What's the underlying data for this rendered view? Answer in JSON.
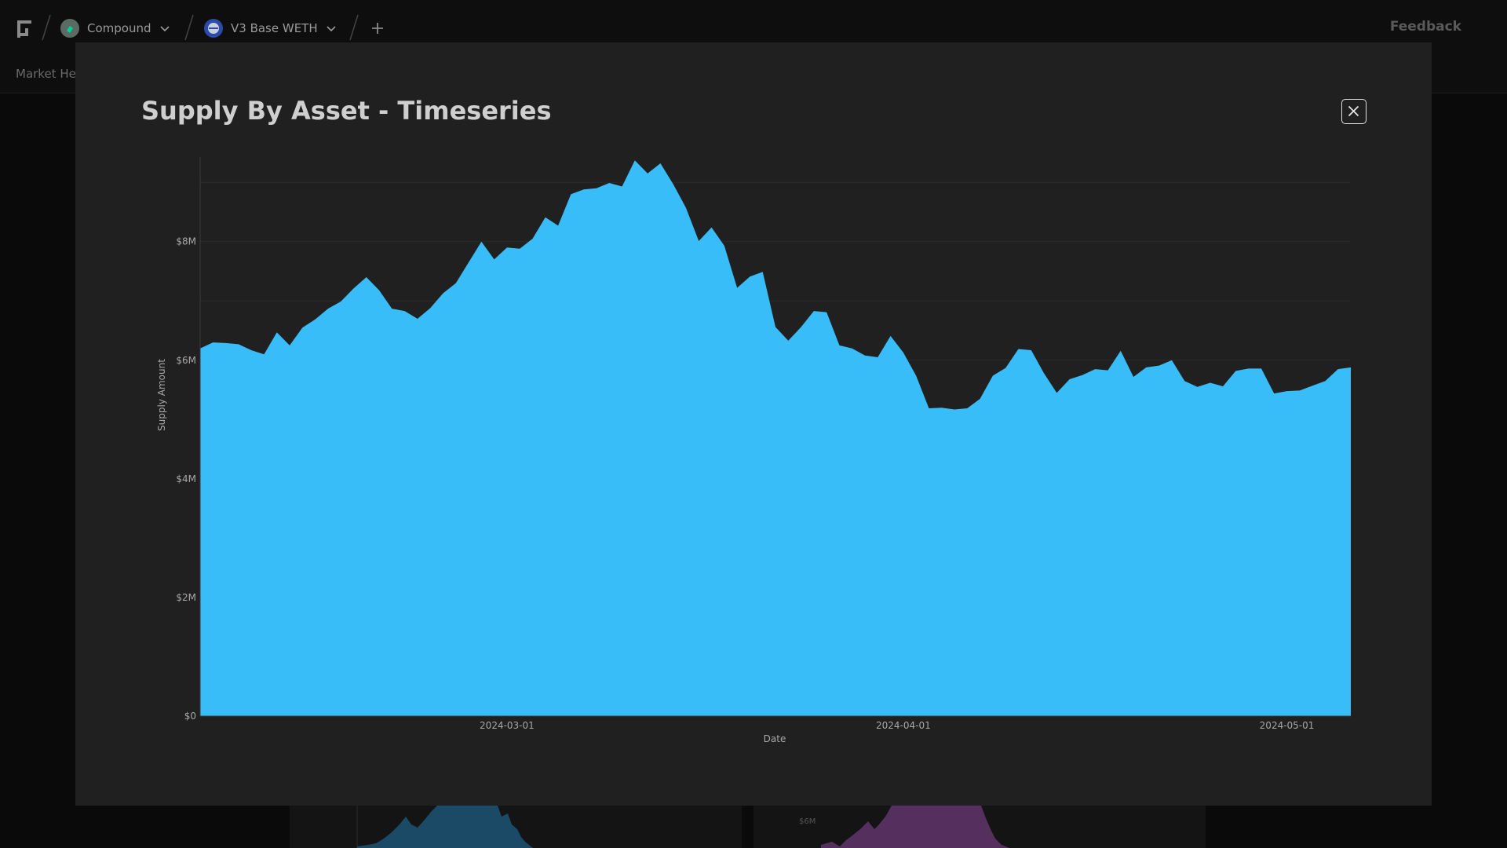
{
  "topbar": {
    "protocol": {
      "label": "Compound",
      "icon": "compound-logo-icon",
      "color": "#00d395"
    },
    "market": {
      "label": "V3 Base WETH",
      "icon": "weth-logo-icon",
      "color": "#2a4ba8"
    },
    "add_icon": "plus-icon",
    "feedback_label": "Feedback"
  },
  "subnav": {
    "active_tab": "Market Hea"
  },
  "modal": {
    "title": "Supply By Asset - Timeseries",
    "close_icon": "close-icon"
  },
  "colors": {
    "series": "#38bdf8",
    "background": "#202020"
  },
  "background_thumbnails": [
    {
      "color": "#1b4a66",
      "label": ""
    },
    {
      "color": "#55305e",
      "label": "$6M"
    }
  ],
  "chart_data": {
    "type": "area",
    "title": "",
    "xlabel": "Date",
    "ylabel": "Supply Amount",
    "x_ticks": [
      "2024-03-01",
      "2024-04-01",
      "2024-05-01"
    ],
    "y_ticks": [
      "$0",
      "$2M",
      "$4M",
      "$6M",
      "$8M"
    ],
    "y_tick_values": [
      0,
      2000000,
      4000000,
      6000000,
      8000000
    ],
    "ylim": [
      0,
      9400000
    ],
    "xlim": [
      "2024-02-06",
      "2024-05-06"
    ],
    "grid": true,
    "series": [
      {
        "color": "#38bdf8",
        "points": [
          [
            "2024-02-06",
            6200000
          ],
          [
            "2024-02-07",
            6300000
          ],
          [
            "2024-02-08",
            6290000
          ],
          [
            "2024-02-09",
            6270000
          ],
          [
            "2024-02-10",
            6170000
          ],
          [
            "2024-02-11",
            6100000
          ],
          [
            "2024-02-12",
            6470000
          ],
          [
            "2024-02-13",
            6250000
          ],
          [
            "2024-02-14",
            6550000
          ],
          [
            "2024-02-15",
            6690000
          ],
          [
            "2024-02-16",
            6870000
          ],
          [
            "2024-02-17",
            6990000
          ],
          [
            "2024-02-18",
            7210000
          ],
          [
            "2024-02-19",
            7400000
          ],
          [
            "2024-02-20",
            7180000
          ],
          [
            "2024-02-21",
            6870000
          ],
          [
            "2024-02-22",
            6830000
          ],
          [
            "2024-02-23",
            6700000
          ],
          [
            "2024-02-24",
            6880000
          ],
          [
            "2024-02-25",
            7130000
          ],
          [
            "2024-02-26",
            7300000
          ],
          [
            "2024-02-27",
            7650000
          ],
          [
            "2024-02-28",
            8000000
          ],
          [
            "2024-02-29",
            7700000
          ],
          [
            "2024-03-01",
            7900000
          ],
          [
            "2024-03-02",
            7880000
          ],
          [
            "2024-03-03",
            8050000
          ],
          [
            "2024-03-04",
            8410000
          ],
          [
            "2024-03-05",
            8270000
          ],
          [
            "2024-03-06",
            8800000
          ],
          [
            "2024-03-07",
            8880000
          ],
          [
            "2024-03-08",
            8900000
          ],
          [
            "2024-03-09",
            8990000
          ],
          [
            "2024-03-10",
            8930000
          ],
          [
            "2024-03-11",
            9370000
          ],
          [
            "2024-03-12",
            9150000
          ],
          [
            "2024-03-13",
            9320000
          ],
          [
            "2024-03-14",
            8970000
          ],
          [
            "2024-03-15",
            8570000
          ],
          [
            "2024-03-16",
            8010000
          ],
          [
            "2024-03-17",
            8240000
          ],
          [
            "2024-03-18",
            7930000
          ],
          [
            "2024-03-19",
            7220000
          ],
          [
            "2024-03-20",
            7410000
          ],
          [
            "2024-03-21",
            7490000
          ],
          [
            "2024-03-22",
            6560000
          ],
          [
            "2024-03-23",
            6330000
          ],
          [
            "2024-03-24",
            6560000
          ],
          [
            "2024-03-25",
            6830000
          ],
          [
            "2024-03-26",
            6810000
          ],
          [
            "2024-03-27",
            6250000
          ],
          [
            "2024-03-28",
            6200000
          ],
          [
            "2024-03-29",
            6080000
          ],
          [
            "2024-03-30",
            6050000
          ],
          [
            "2024-03-31",
            6410000
          ],
          [
            "2024-04-01",
            6130000
          ],
          [
            "2024-04-02",
            5740000
          ],
          [
            "2024-04-03",
            5190000
          ],
          [
            "2024-04-04",
            5200000
          ],
          [
            "2024-04-05",
            5170000
          ],
          [
            "2024-04-06",
            5190000
          ],
          [
            "2024-04-07",
            5350000
          ],
          [
            "2024-04-08",
            5740000
          ],
          [
            "2024-04-09",
            5870000
          ],
          [
            "2024-04-10",
            6190000
          ],
          [
            "2024-04-11",
            6170000
          ],
          [
            "2024-04-12",
            5780000
          ],
          [
            "2024-04-13",
            5450000
          ],
          [
            "2024-04-14",
            5680000
          ],
          [
            "2024-04-15",
            5750000
          ],
          [
            "2024-04-16",
            5850000
          ],
          [
            "2024-04-17",
            5830000
          ],
          [
            "2024-04-18",
            6160000
          ],
          [
            "2024-04-19",
            5720000
          ],
          [
            "2024-04-20",
            5880000
          ],
          [
            "2024-04-21",
            5910000
          ],
          [
            "2024-04-22",
            6000000
          ],
          [
            "2024-04-23",
            5650000
          ],
          [
            "2024-04-24",
            5550000
          ],
          [
            "2024-04-25",
            5620000
          ],
          [
            "2024-04-26",
            5560000
          ],
          [
            "2024-04-27",
            5820000
          ],
          [
            "2024-04-28",
            5860000
          ],
          [
            "2024-04-29",
            5860000
          ],
          [
            "2024-04-30",
            5440000
          ],
          [
            "2024-05-01",
            5480000
          ],
          [
            "2024-05-02",
            5490000
          ],
          [
            "2024-05-03",
            5570000
          ],
          [
            "2024-05-04",
            5650000
          ],
          [
            "2024-05-05",
            5850000
          ],
          [
            "2024-05-06",
            5880000
          ]
        ]
      }
    ]
  }
}
